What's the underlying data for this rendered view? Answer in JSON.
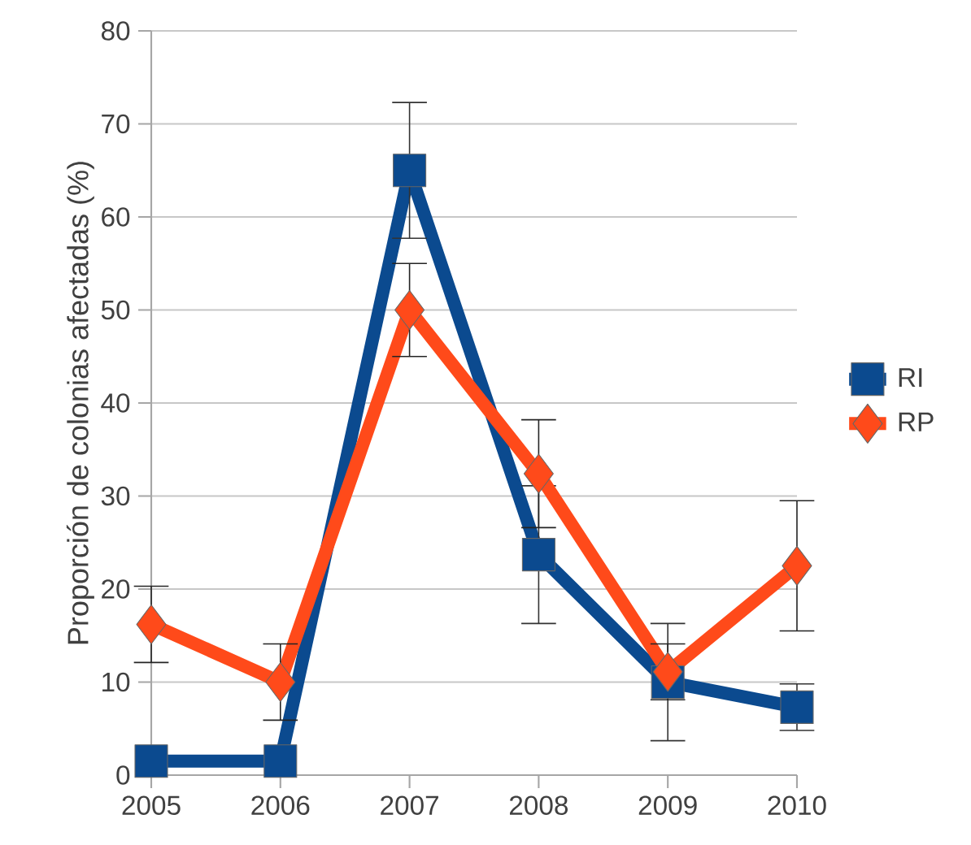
{
  "chart_data": {
    "type": "line",
    "ylabel": "Proporción de colonias afectadas (%)",
    "categories": [
      "2005",
      "2006",
      "2007",
      "2008",
      "2009",
      "2010"
    ],
    "series": [
      {
        "name": "RI",
        "color": "#0b4a8f",
        "marker": "square",
        "values": [
          1.5,
          1.5,
          65,
          23.7,
          10,
          7.3
        ],
        "errors": [
          null,
          null,
          7.3,
          7.4,
          6.3,
          2.5
        ]
      },
      {
        "name": "RP",
        "color": "#ff4a1a",
        "marker": "diamond",
        "values": [
          16.2,
          10,
          50,
          32.4,
          11.1,
          22.5
        ],
        "errors": [
          4.1,
          4.1,
          5,
          5.8,
          3,
          7
        ]
      }
    ],
    "ylim": [
      0,
      80
    ],
    "yticks": [
      0,
      10,
      20,
      30,
      40,
      50,
      60,
      70,
      80
    ],
    "grid": "y",
    "legend": "right",
    "line_style": "solid"
  }
}
